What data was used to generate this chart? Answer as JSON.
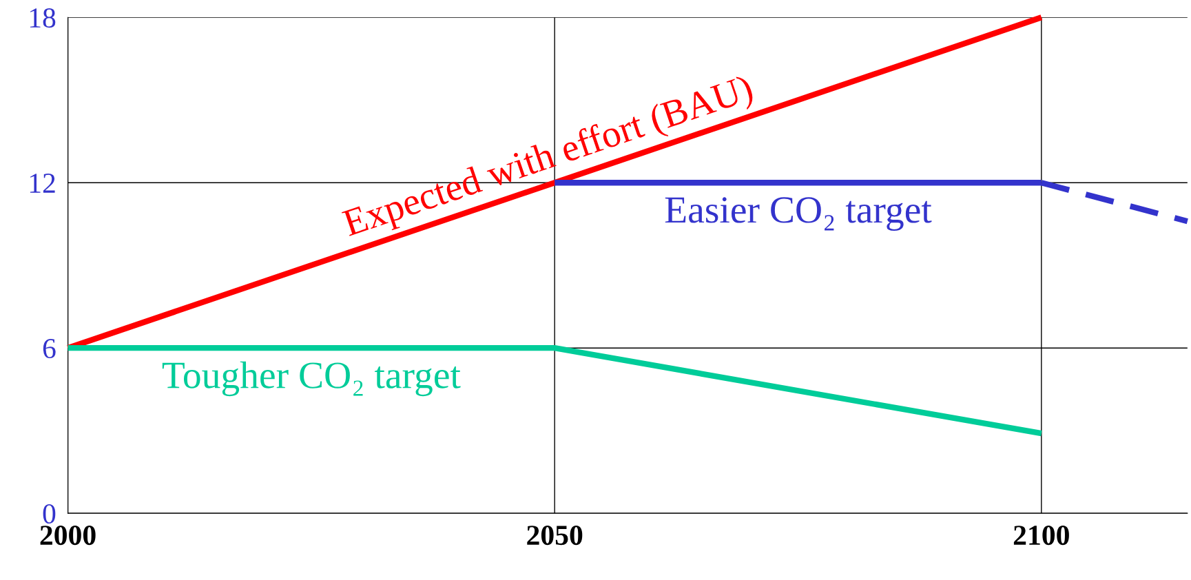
{
  "chart_data": {
    "type": "line",
    "xlim": [
      2000,
      2115
    ],
    "xticks": [
      2000,
      2050,
      2100
    ],
    "ylim": [
      0,
      18
    ],
    "yticks": [
      0,
      6,
      12,
      18
    ],
    "grid": true,
    "line_style": "solid",
    "marker": "none",
    "series": [
      {
        "name": "Expected with effort (BAU)",
        "color": "#ff0000",
        "x": [
          2000,
          2100
        ],
        "values": [
          6,
          18
        ]
      },
      {
        "name": "Easier CO₂ target",
        "color": "#3333cc",
        "x": [
          2050,
          2100
        ],
        "values": [
          12,
          12
        ]
      },
      {
        "color": "#3333cc",
        "x": [
          2100,
          2115
        ],
        "values": [
          12,
          10.6
        ],
        "line_style": "dashed"
      },
      {
        "name": "Tougher CO₂ target",
        "color": "#00cc99",
        "x": [
          2000,
          2050,
          2100
        ],
        "values": [
          6,
          6,
          2.9
        ]
      }
    ]
  }
}
